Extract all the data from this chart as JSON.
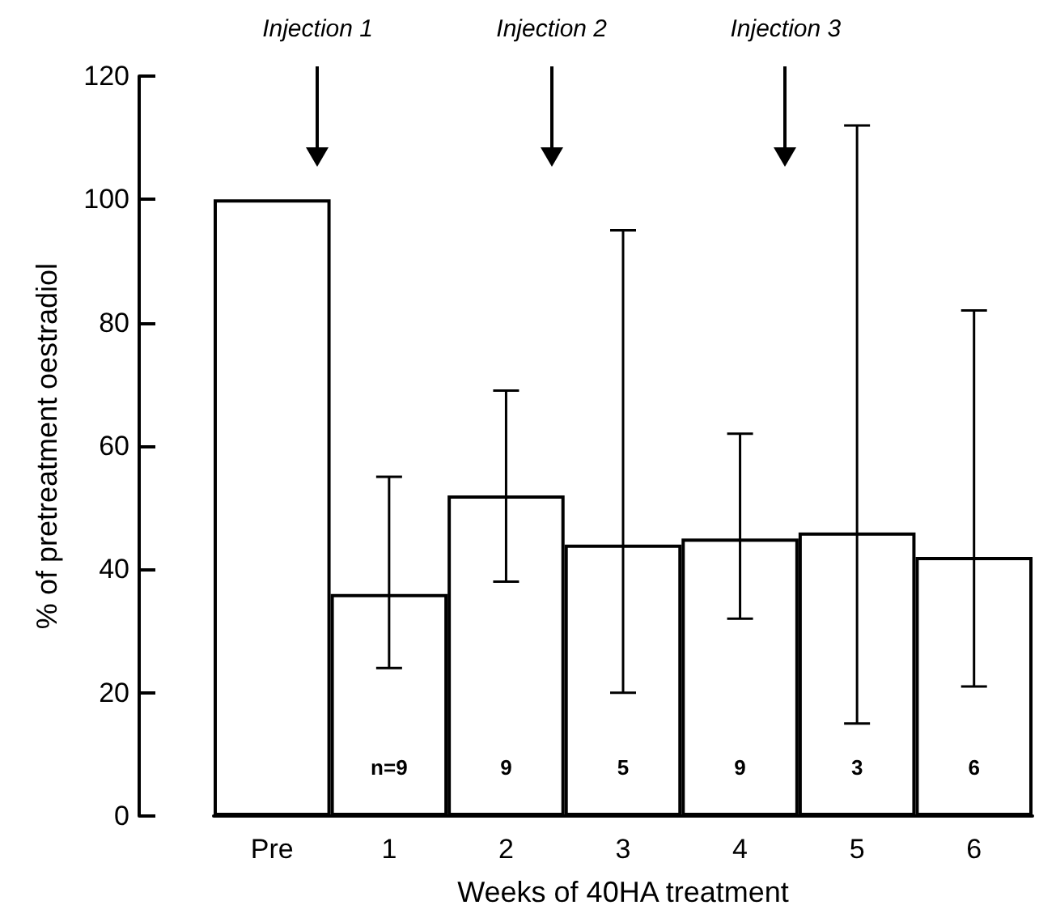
{
  "chart_data": {
    "type": "bar",
    "xlabel": "Weeks of 40HA treatment",
    "ylabel": "% of pretreatment oestradiol",
    "categories": [
      "Pre",
      "1",
      "2",
      "3",
      "4",
      "5",
      "6"
    ],
    "values": [
      100,
      36,
      52,
      44,
      45,
      46,
      42
    ],
    "errors": [
      null,
      [
        24,
        55
      ],
      [
        38,
        69
      ],
      [
        20,
        95
      ],
      [
        32,
        62
      ],
      [
        15,
        112
      ],
      [
        21,
        82
      ]
    ],
    "color": "#ffffff",
    "ylim": [
      0,
      120
    ],
    "yticks": [
      0,
      20,
      40,
      60,
      80,
      100,
      120
    ],
    "grid": false,
    "annotations": [
      "Injection 1",
      "Injection 2",
      "Injection 3",
      "n=9",
      "9",
      "5",
      "9",
      "3",
      "6"
    ]
  }
}
